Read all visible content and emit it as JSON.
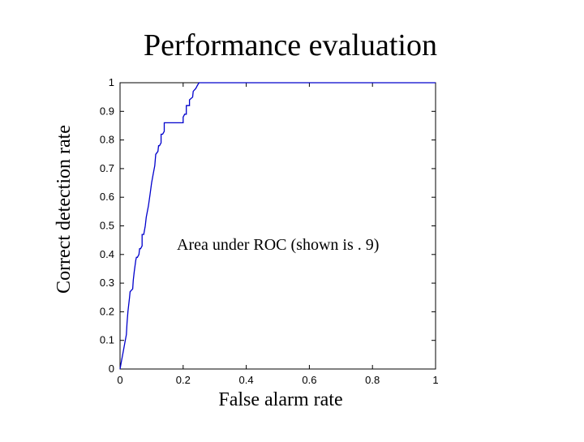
{
  "slide": {
    "title": "Performance evaluation"
  },
  "chart_data": {
    "type": "line",
    "title": "",
    "xlabel": "False alarm rate",
    "ylabel": "Correct detection rate",
    "xlim": [
      0,
      1
    ],
    "ylim": [
      0,
      1
    ],
    "xticks": [
      "0",
      "0.2",
      "0.4",
      "0.6",
      "0.8",
      "1"
    ],
    "yticks": [
      "0",
      "0.1",
      "0.2",
      "0.3",
      "0.4",
      "0.5",
      "0.6",
      "0.7",
      "0.8",
      "0.9",
      "1"
    ],
    "grid": false,
    "annotation": "Area under ROC (shown is . 9)",
    "series": [
      {
        "color": "#0000cc",
        "x": [
          0,
          0.005,
          0.01,
          0.015,
          0.02,
          0.022,
          0.025,
          0.03,
          0.032,
          0.04,
          0.042,
          0.045,
          0.05,
          0.052,
          0.055,
          0.06,
          0.062,
          0.065,
          0.07,
          0.07,
          0.075,
          0.08,
          0.083,
          0.09,
          0.095,
          0.1,
          0.105,
          0.11,
          0.113,
          0.12,
          0.122,
          0.125,
          0.13,
          0.13,
          0.135,
          0.14,
          0.14,
          0.15,
          0.155,
          0.16,
          0.16,
          0.2,
          0.2,
          0.205,
          0.21,
          0.21,
          0.22,
          0.22,
          0.23,
          0.232,
          0.24,
          0.245,
          0.25,
          1
        ],
        "y": [
          0,
          0.03,
          0.06,
          0.09,
          0.12,
          0.16,
          0.2,
          0.25,
          0.27,
          0.28,
          0.31,
          0.34,
          0.38,
          0.39,
          0.39,
          0.4,
          0.42,
          0.42,
          0.43,
          0.47,
          0.47,
          0.5,
          0.53,
          0.57,
          0.61,
          0.65,
          0.68,
          0.71,
          0.75,
          0.76,
          0.78,
          0.78,
          0.79,
          0.82,
          0.82,
          0.83,
          0.86,
          0.86,
          0.86,
          0.86,
          0.86,
          0.86,
          0.88,
          0.89,
          0.89,
          0.92,
          0.92,
          0.94,
          0.95,
          0.97,
          0.98,
          0.99,
          1,
          1
        ]
      }
    ]
  }
}
